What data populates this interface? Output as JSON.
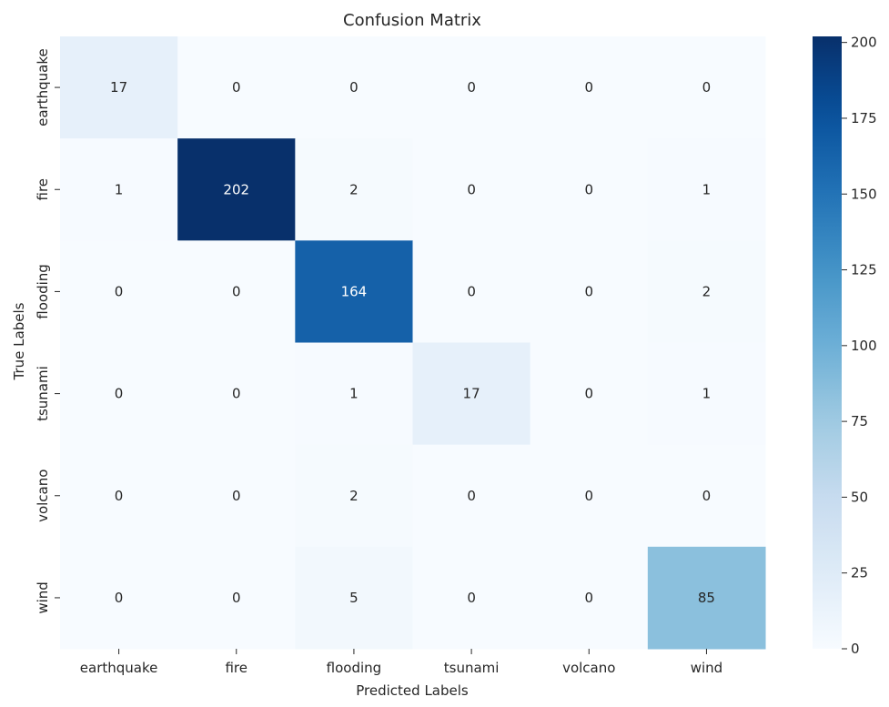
{
  "chart_data": {
    "type": "heatmap",
    "title": "Confusion Matrix",
    "xlabel": "Predicted Labels",
    "ylabel": "True Labels",
    "x_categories": [
      "earthquake",
      "fire",
      "flooding",
      "tsunami",
      "volcano",
      "wind"
    ],
    "y_categories": [
      "earthquake",
      "fire",
      "flooding",
      "tsunami",
      "volcano",
      "wind"
    ],
    "values": [
      [
        17,
        0,
        0,
        0,
        0,
        0
      ],
      [
        1,
        202,
        2,
        0,
        0,
        1
      ],
      [
        0,
        0,
        164,
        0,
        0,
        2
      ],
      [
        0,
        0,
        1,
        17,
        0,
        1
      ],
      [
        0,
        0,
        2,
        0,
        0,
        0
      ],
      [
        0,
        0,
        5,
        0,
        0,
        85
      ]
    ],
    "colorscale": "Blues",
    "color_low": "#f7fbff",
    "color_high": "#08306b",
    "vmin": 0,
    "vmax": 202,
    "colorbar_ticks": [
      0,
      25,
      50,
      75,
      100,
      125,
      150,
      175,
      200
    ]
  }
}
